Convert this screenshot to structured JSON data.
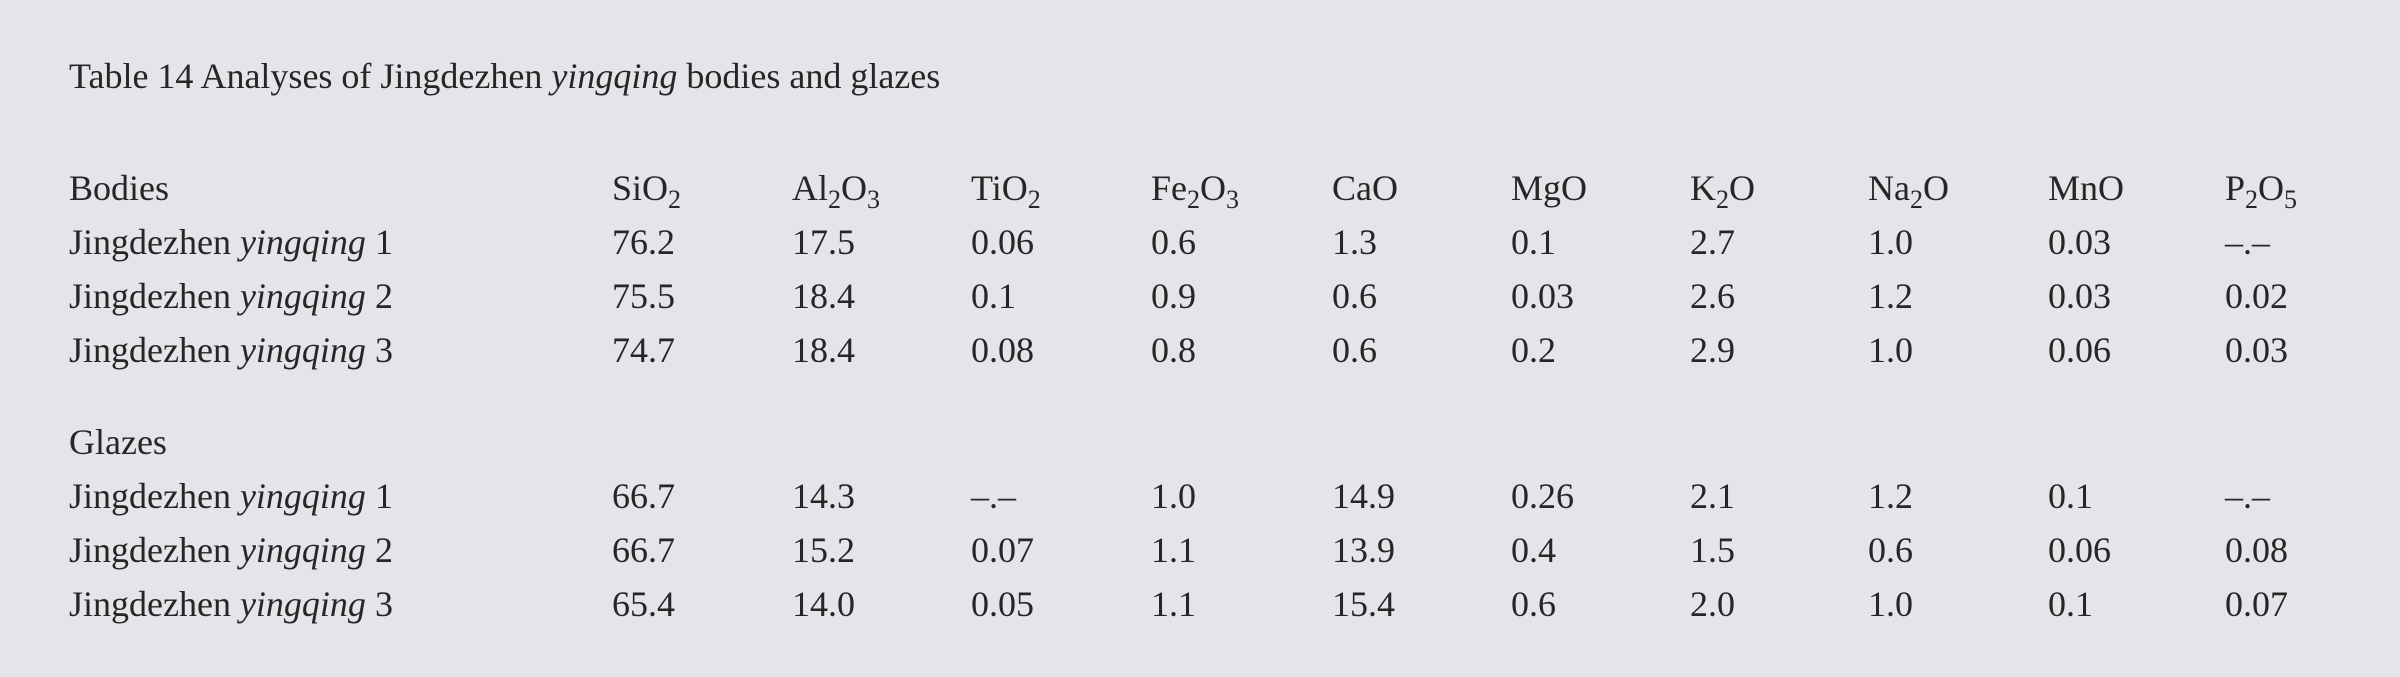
{
  "title": {
    "prefix": "Table 14 Analyses of Jingdezhen ",
    "emph": "yingqing",
    "suffix": " bodies and glazes"
  },
  "columns": [
    "SiO2",
    "Al2O3",
    "TiO2",
    "Fe2O3",
    "CaO",
    "MgO",
    "K2O",
    "Na2O",
    "MnO",
    "P2O5"
  ],
  "sections": [
    {
      "heading": "Bodies",
      "rows": [
        {
          "label": [
            "Jingdezhen ",
            "yingqing",
            " 1"
          ],
          "values": [
            "76.2",
            "17.5",
            "0.06",
            "0.6",
            "1.3",
            "0.1",
            "2.7",
            "1.0",
            "0.03",
            "–.–"
          ]
        },
        {
          "label": [
            "Jingdezhen ",
            "yingqing",
            " 2"
          ],
          "values": [
            "75.5",
            "18.4",
            "0.1",
            "0.9",
            "0.6",
            "0.03",
            "2.6",
            "1.2",
            "0.03",
            "0.02"
          ]
        },
        {
          "label": [
            "Jingdezhen ",
            "yingqing",
            " 3"
          ],
          "values": [
            "74.7",
            "18.4",
            "0.08",
            "0.8",
            "0.6",
            "0.2",
            "2.9",
            "1.0",
            "0.06",
            "0.03"
          ]
        }
      ]
    },
    {
      "heading": "Glazes",
      "rows": [
        {
          "label": [
            "Jingdezhen ",
            "yingqing",
            " 1"
          ],
          "values": [
            "66.7",
            "14.3",
            "–.–",
            "1.0",
            "14.9",
            "0.26",
            "2.1",
            "1.2",
            "0.1",
            "–.–"
          ]
        },
        {
          "label": [
            "Jingdezhen ",
            "yingqing",
            " 2"
          ],
          "values": [
            "66.7",
            "15.2",
            "0.07",
            "1.1",
            "13.9",
            "0.4",
            "1.5",
            "0.6",
            "0.06",
            "0.08"
          ]
        },
        {
          "label": [
            "Jingdezhen ",
            "yingqing",
            " 3"
          ],
          "values": [
            "65.4",
            "14.0",
            "0.05",
            "1.1",
            "15.4",
            "0.6",
            "2.0",
            "1.0",
            "0.1",
            "0.07"
          ]
        }
      ]
    }
  ]
}
